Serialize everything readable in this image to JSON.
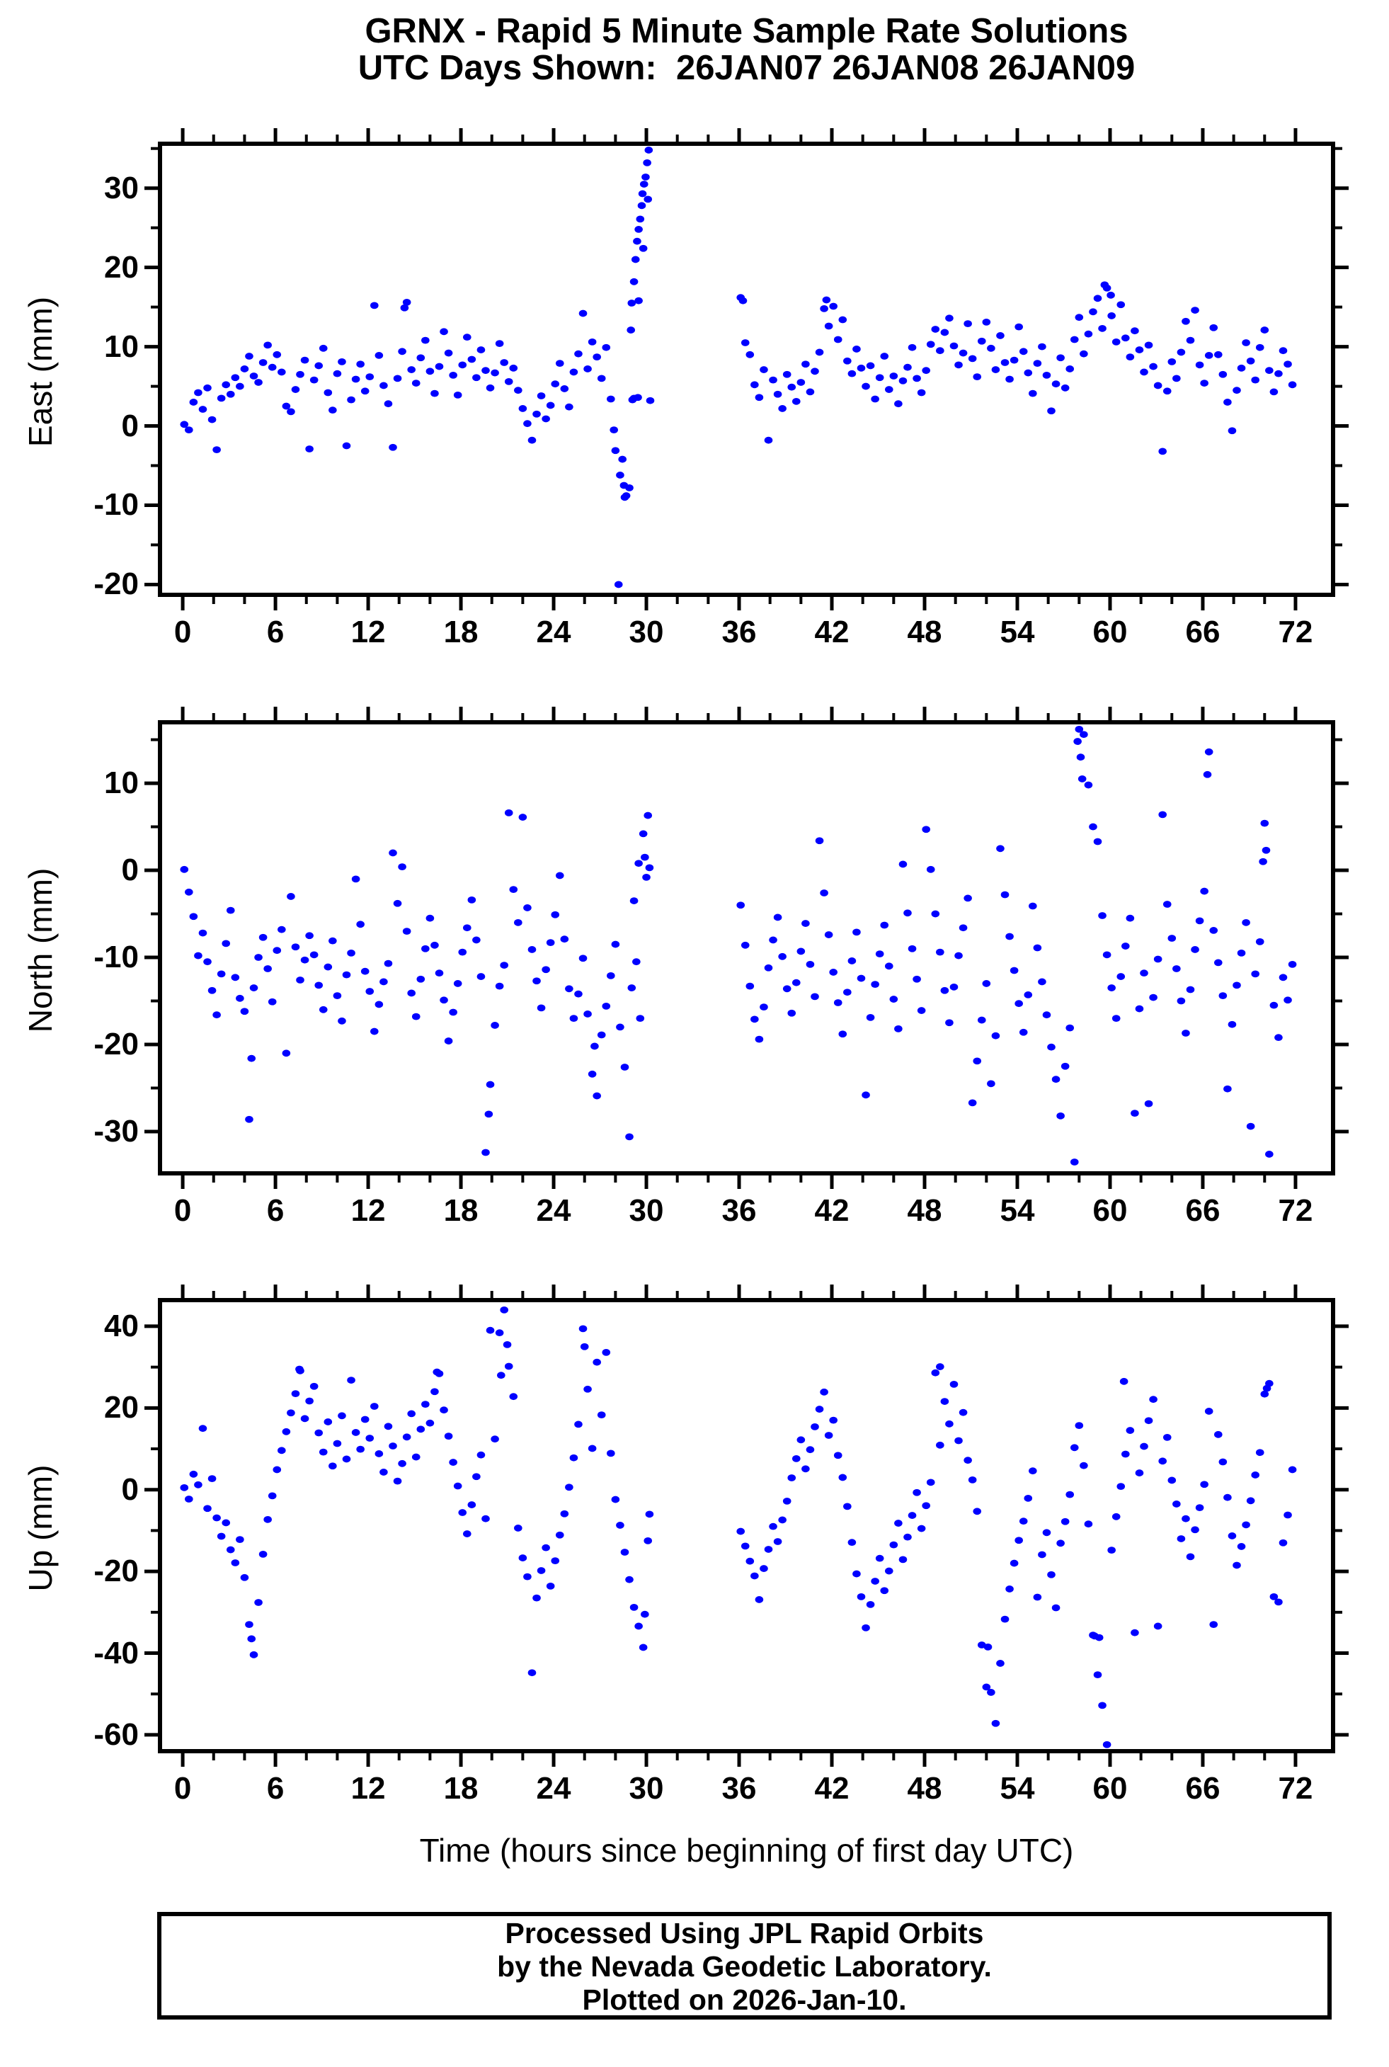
{
  "header": {
    "title_line1": "GRNX - Rapid 5 Minute Sample Rate Solutions",
    "title_line2": "UTC Days Shown:  26JAN07 26JAN08 26JAN09"
  },
  "footer": {
    "line1": "Processed Using JPL Rapid Orbits",
    "line2": "by the Nevada Geodetic Laboratory.",
    "line3": "Plotted on 2026-Jan-10."
  },
  "chart_data": {
    "type": "scatter",
    "title": "GRNX - Rapid 5 Minute Sample Rate Solutions",
    "subtitle": "UTC Days Shown:  26JAN07 26JAN08 26JAN09",
    "xlabel": "Time (hours since beginning of first day UTC)",
    "point_color": "#0000ff",
    "xlim": [
      -1.47,
      74.43
    ],
    "xticks": [
      0,
      6,
      12,
      18,
      24,
      30,
      36,
      42,
      48,
      54,
      60,
      66,
      72
    ],
    "x_minor_step": 2,
    "grid": false,
    "legend": "none",
    "data_gap_hours": [
      30.4,
      36.0
    ],
    "panels": [
      {
        "name": "east",
        "ylabel": "East (mm)",
        "ylim": [
          -21.3,
          35.6
        ],
        "yticks": [
          -20,
          -10,
          0,
          10,
          20,
          30
        ],
        "yminors": [
          -15,
          -5,
          5,
          15,
          25,
          35
        ],
        "segments": [
          {
            "x0": 0.1,
            "dx": 0.3,
            "y": [
              0.2,
              -0.5,
              3.0,
              4.2,
              2.1,
              4.8,
              0.8,
              -3.0,
              3.5,
              5.2,
              4.0,
              6.1,
              5.0,
              7.2,
              8.8,
              6.3,
              5.5,
              8.0,
              10.2,
              7.4,
              9.0,
              6.8,
              2.5,
              1.8,
              4.6,
              6.5,
              8.3,
              -2.9,
              5.8,
              7.6,
              9.8,
              4.2,
              2.0,
              6.6,
              8.1,
              -2.5,
              3.3,
              5.9,
              7.8,
              4.4,
              6.2,
              15.2,
              8.9,
              5.1,
              2.8,
              -2.7,
              6.0,
              9.4,
              15.6,
              7.1,
              5.4,
              8.6,
              10.8,
              6.9,
              4.1,
              7.5,
              11.9,
              9.2,
              6.4,
              3.9,
              7.7,
              11.2,
              8.4,
              6.1,
              9.6,
              7.0,
              4.8,
              6.7,
              10.4,
              8.0,
              5.6,
              7.3,
              4.5,
              2.2,
              0.3,
              -1.8,
              1.5,
              3.8,
              0.9,
              2.6,
              5.3,
              7.9,
              4.7,
              2.4,
              6.8,
              9.1,
              14.2,
              7.2,
              10.6,
              8.7,
              6.0,
              9.9,
              3.4,
              -3.1,
              -6.2,
              -9.0,
              -7.8,
              3.5,
              15.8,
              22.4,
              28.6
            ]
          },
          {
            "x0": 36.1,
            "dx": 0.3,
            "y": [
              16.2,
              10.5,
              9.0,
              5.2,
              3.6,
              7.1,
              -1.8,
              5.8,
              4.0,
              2.2,
              6.5,
              4.9,
              3.1,
              5.5,
              7.8,
              4.3,
              6.9,
              9.3,
              14.8,
              12.6,
              15.1,
              10.9,
              13.4,
              8.2,
              6.6,
              9.7,
              7.3,
              5.0,
              7.6,
              3.4,
              6.1,
              8.8,
              4.6,
              6.3,
              2.8,
              5.7,
              7.4,
              9.9,
              6.0,
              4.2,
              7.0,
              10.3,
              12.2,
              9.5,
              11.8,
              13.6,
              10.1,
              7.7,
              9.2,
              12.9,
              8.5,
              6.2,
              10.7,
              13.1,
              9.8,
              7.1,
              11.4,
              8.0,
              5.9,
              8.3,
              12.5,
              9.4,
              6.7,
              4.1,
              7.9,
              10.0,
              6.4,
              1.9,
              5.3,
              8.6,
              4.8,
              7.2,
              10.9,
              13.7,
              9.1,
              11.6,
              14.4,
              16.1,
              12.3,
              17.4,
              13.9,
              10.6,
              15.3,
              11.1,
              8.7,
              12.0,
              9.6,
              6.8,
              10.2,
              7.5,
              5.1,
              -3.2,
              4.4,
              8.1,
              6.0,
              9.3,
              13.2,
              10.8,
              14.6,
              7.7,
              5.4,
              8.9,
              12.4,
              9.0,
              6.5,
              3.0,
              -0.6,
              4.5,
              7.3,
              10.5,
              8.2,
              5.8,
              9.9,
              12.1,
              7.0,
              4.3,
              6.6,
              9.5,
              7.8,
              5.2
            ]
          }
        ],
        "extra": [
          [
            28.2,
            -20.0
          ],
          [
            28.45,
            -4.2
          ],
          [
            28.55,
            -7.5
          ],
          [
            28.7,
            -8.8
          ],
          [
            27.9,
            -0.5
          ],
          [
            29.0,
            12.1
          ],
          [
            29.05,
            15.5
          ],
          [
            29.2,
            18.2
          ],
          [
            29.3,
            21.0
          ],
          [
            29.4,
            23.3
          ],
          [
            29.5,
            24.8
          ],
          [
            29.6,
            26.1
          ],
          [
            29.7,
            27.8
          ],
          [
            29.75,
            29.3
          ],
          [
            29.85,
            30.5
          ],
          [
            29.95,
            31.4
          ],
          [
            30.05,
            33.2
          ],
          [
            30.15,
            34.8
          ],
          [
            29.1,
            3.3
          ],
          [
            29.45,
            3.6
          ],
          [
            30.25,
            3.2
          ],
          [
            36.25,
            15.8
          ],
          [
            59.65,
            17.8
          ],
          [
            60.05,
            16.5
          ],
          [
            41.65,
            15.9
          ],
          [
            14.35,
            14.9
          ]
        ]
      },
      {
        "name": "north",
        "ylabel": "North (mm)",
        "ylim": [
          -34.8,
          17.0
        ],
        "yticks": [
          -30,
          -20,
          -10,
          0,
          10
        ],
        "yminors": [
          -25,
          -15,
          -5,
          5,
          15
        ],
        "segments": [
          {
            "x0": 0.1,
            "dx": 0.3,
            "y": [
              0.1,
              -2.5,
              -5.3,
              -9.8,
              -7.2,
              -10.5,
              -13.8,
              -16.6,
              -11.9,
              -8.4,
              -4.6,
              -12.3,
              -14.7,
              -16.2,
              -28.6,
              -13.5,
              -10.0,
              -7.7,
              -11.3,
              -15.1,
              -9.2,
              -6.8,
              -21.0,
              -3.0,
              -8.8,
              -12.6,
              -10.3,
              -7.5,
              -9.7,
              -13.2,
              -16.0,
              -11.1,
              -8.1,
              -14.4,
              -17.3,
              -12.0,
              -9.5,
              -1.0,
              -6.2,
              -11.6,
              -13.9,
              -18.5,
              -15.4,
              -12.8,
              -10.7,
              2.0,
              -3.8,
              0.4,
              -7.0,
              -14.1,
              -16.8,
              -12.5,
              -9.0,
              -5.5,
              -8.6,
              -11.8,
              -14.9,
              -19.6,
              -16.3,
              -13.0,
              -9.4,
              -6.6,
              -3.4,
              -8.0,
              -12.2,
              -32.4,
              -24.6,
              -17.8,
              -13.3,
              -10.9,
              6.6,
              -2.2,
              -6.0,
              6.1,
              -4.3,
              -9.1,
              -12.7,
              -15.8,
              -11.4,
              -8.3,
              -5.1,
              -0.6,
              -7.9,
              -13.6,
              -17.0,
              -14.2,
              -10.1,
              -16.5,
              -23.4,
              -25.9,
              -18.9,
              -15.6,
              -12.1,
              -8.5,
              -18.0,
              -22.6,
              -30.6,
              -3.5,
              0.8,
              4.2,
              6.3
            ]
          },
          {
            "x0": 36.1,
            "dx": 0.3,
            "y": [
              -4.0,
              -8.6,
              -13.3,
              -17.1,
              -19.4,
              -15.7,
              -11.2,
              -8.0,
              -5.4,
              -9.9,
              -13.6,
              -16.4,
              -12.9,
              -9.3,
              -6.1,
              -10.8,
              -14.5,
              3.4,
              -2.6,
              -7.4,
              -11.7,
              -15.2,
              -18.8,
              -14.0,
              -10.4,
              -7.1,
              -12.4,
              -25.8,
              -16.9,
              -13.1,
              -9.6,
              -6.3,
              -11.0,
              -14.8,
              -18.2,
              0.7,
              -4.9,
              -9.0,
              -12.5,
              -16.1,
              4.7,
              0.1,
              -5.0,
              -9.4,
              -13.8,
              -17.5,
              -13.4,
              -9.8,
              -6.6,
              -3.2,
              -26.7,
              -21.9,
              -17.2,
              -13.0,
              -24.5,
              -19.0,
              2.5,
              -2.8,
              -7.6,
              -11.5,
              -15.3,
              -18.6,
              -14.3,
              -4.1,
              -8.9,
              -12.8,
              -16.6,
              -20.3,
              -24.0,
              -28.2,
              -22.5,
              -18.1,
              -33.5,
              16.2,
              15.6,
              9.8,
              5.0,
              3.3,
              -5.2,
              -9.7,
              -13.5,
              -17.0,
              -12.2,
              -8.7,
              -5.5,
              -27.9,
              -15.9,
              -11.8,
              -26.8,
              -14.6,
              -10.2,
              6.4,
              -3.9,
              -7.8,
              -11.3,
              -15.0,
              -18.7,
              -13.7,
              -9.1,
              -5.8,
              -2.4,
              13.6,
              -6.9,
              -10.6,
              -14.4,
              -25.1,
              -17.7,
              -13.2,
              -9.5,
              -6.0,
              -29.4,
              -11.9,
              -8.2,
              5.4,
              -32.6,
              -15.5,
              -19.2,
              -12.3,
              -14.9,
              -10.8
            ]
          }
        ],
        "extra": [
          [
            4.45,
            -21.6
          ],
          [
            19.8,
            -28.0
          ],
          [
            29.05,
            -13.5
          ],
          [
            29.35,
            -10.5
          ],
          [
            29.6,
            -17.0
          ],
          [
            29.9,
            1.5
          ],
          [
            30.0,
            -0.8
          ],
          [
            30.2,
            0.3
          ],
          [
            26.65,
            -20.2
          ],
          [
            58.1,
            13.0
          ],
          [
            58.2,
            10.5
          ],
          [
            69.9,
            1.0
          ],
          [
            70.1,
            2.3
          ],
          [
            57.9,
            14.8
          ],
          [
            66.3,
            11.0
          ]
        ]
      },
      {
        "name": "up",
        "ylabel": "Up (mm)",
        "ylim": [
          -64.0,
          46.4
        ],
        "yticks": [
          -60,
          -40,
          -20,
          0,
          20,
          40
        ],
        "yminors": [
          -50,
          -30,
          -10,
          10,
          30
        ],
        "segments": [
          {
            "x0": 0.1,
            "dx": 0.3,
            "y": [
              0.5,
              -2.3,
              3.8,
              1.2,
              15.0,
              -4.6,
              2.7,
              -6.9,
              -11.4,
              -8.1,
              -14.7,
              -17.9,
              -12.2,
              -21.5,
              -33.0,
              -40.4,
              -27.6,
              -15.8,
              -7.3,
              -1.5,
              4.9,
              9.6,
              14.2,
              18.8,
              23.5,
              29.1,
              17.4,
              21.7,
              25.3,
              13.9,
              9.2,
              16.6,
              5.8,
              11.3,
              18.1,
              7.5,
              26.8,
              14.0,
              9.9,
              17.2,
              12.6,
              20.4,
              8.8,
              4.3,
              15.5,
              10.7,
              2.1,
              6.4,
              12.9,
              18.6,
              8.0,
              14.8,
              20.9,
              16.3,
              24.0,
              28.4,
              19.5,
              13.1,
              6.7,
              0.9,
              -5.6,
              -10.8,
              -3.7,
              3.2,
              8.5,
              -7.1,
              39.0,
              12.4,
              38.4,
              44.0,
              30.2,
              22.8,
              -9.4,
              -16.7,
              -21.3,
              -44.8,
              -26.5,
              -19.8,
              -14.2,
              -23.6,
              -17.4,
              -11.1,
              -5.9,
              0.6,
              7.8,
              16.0,
              39.4,
              24.6,
              10.1,
              31.2,
              18.3,
              33.6,
              8.9,
              -2.4,
              -8.7,
              -15.3,
              -22.0,
              -28.8,
              -33.4,
              -38.6,
              -12.5
            ]
          },
          {
            "x0": 36.1,
            "dx": 0.3,
            "y": [
              -10.2,
              -13.8,
              -17.5,
              -21.1,
              -26.9,
              -19.3,
              -14.6,
              -9.0,
              -12.7,
              -7.4,
              -2.8,
              2.9,
              7.6,
              12.2,
              5.1,
              9.8,
              15.4,
              19.7,
              23.9,
              13.3,
              17.0,
              8.4,
              3.0,
              -4.1,
              -12.9,
              -20.6,
              -26.2,
              -33.8,
              -28.1,
              -22.4,
              -16.8,
              -24.7,
              -19.9,
              -13.5,
              -8.2,
              -17.1,
              -11.6,
              -6.3,
              -0.7,
              -9.5,
              -3.9,
              1.8,
              28.6,
              10.9,
              21.6,
              16.1,
              25.8,
              12.0,
              18.9,
              7.2,
              2.4,
              -5.3,
              -38.0,
              -48.3,
              -49.6,
              -57.2,
              -42.5,
              -31.7,
              -24.3,
              -18.0,
              -12.4,
              -7.7,
              -2.1,
              4.6,
              -26.3,
              -15.9,
              -10.5,
              -20.8,
              -28.9,
              -13.1,
              -7.8,
              -1.2,
              10.3,
              15.7,
              5.9,
              -8.4,
              -35.6,
              -45.3,
              -52.8,
              -62.4,
              -14.8,
              -6.6,
              0.8,
              8.7,
              14.5,
              -35.0,
              4.1,
              10.6,
              16.9,
              22.1,
              -33.4,
              7.0,
              12.8,
              2.3,
              -3.5,
              -12.0,
              -7.1,
              -16.4,
              -9.8,
              -4.4,
              1.3,
              19.2,
              -33.0,
              13.5,
              6.8,
              -1.9,
              -11.3,
              -18.5,
              -13.9,
              -8.6,
              -2.7,
              3.6,
              9.1,
              23.4,
              26.0,
              -26.2,
              -27.5,
              -13.0,
              -6.2,
              4.9
            ]
          }
        ],
        "extra": [
          [
            20.6,
            28.0
          ],
          [
            21.0,
            35.5
          ],
          [
            26.0,
            35.0
          ],
          [
            4.45,
            -36.5
          ],
          [
            29.9,
            -30.5
          ],
          [
            30.2,
            -6.0
          ],
          [
            59.0,
            -35.8
          ],
          [
            59.3,
            -36.2
          ],
          [
            49.0,
            30.1
          ],
          [
            70.15,
            24.8
          ],
          [
            52.1,
            -38.5
          ],
          [
            60.9,
            26.5
          ],
          [
            16.45,
            28.8
          ],
          [
            7.55,
            29.5
          ]
        ]
      }
    ]
  }
}
